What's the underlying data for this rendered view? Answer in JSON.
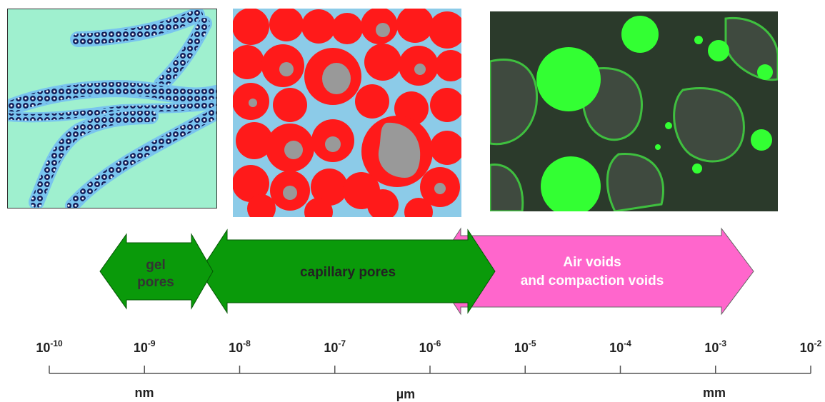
{
  "arrows": {
    "gel_line1": "gel",
    "gel_line2": "pores",
    "capillary": "capillary pores",
    "air_line1": "Air voids",
    "air_line2": "and compaction voids"
  },
  "scale": {
    "ticks": [
      {
        "base": "10",
        "exp": "-10"
      },
      {
        "base": "10",
        "exp": "-9"
      },
      {
        "base": "10",
        "exp": "-8"
      },
      {
        "base": "10",
        "exp": "-7"
      },
      {
        "base": "10",
        "exp": "-6"
      },
      {
        "base": "10",
        "exp": "-5"
      },
      {
        "base": "10",
        "exp": "-4"
      },
      {
        "base": "10",
        "exp": "-3"
      },
      {
        "base": "10",
        "exp": "-2"
      }
    ],
    "unit_nm": "nm",
    "unit_um": "µm",
    "unit_mm": "mm"
  },
  "colors": {
    "gel_bg": "#9ff0cf",
    "capillary_red": "#ff1a1a",
    "capillary_grey": "#999999",
    "capillary_blue": "#8ccbe8",
    "green_arrow": "#0a9a0a",
    "pink_arrow": "#ff66cc",
    "micro_bg": "#2b3a2b",
    "micro_green": "#33ff33"
  }
}
